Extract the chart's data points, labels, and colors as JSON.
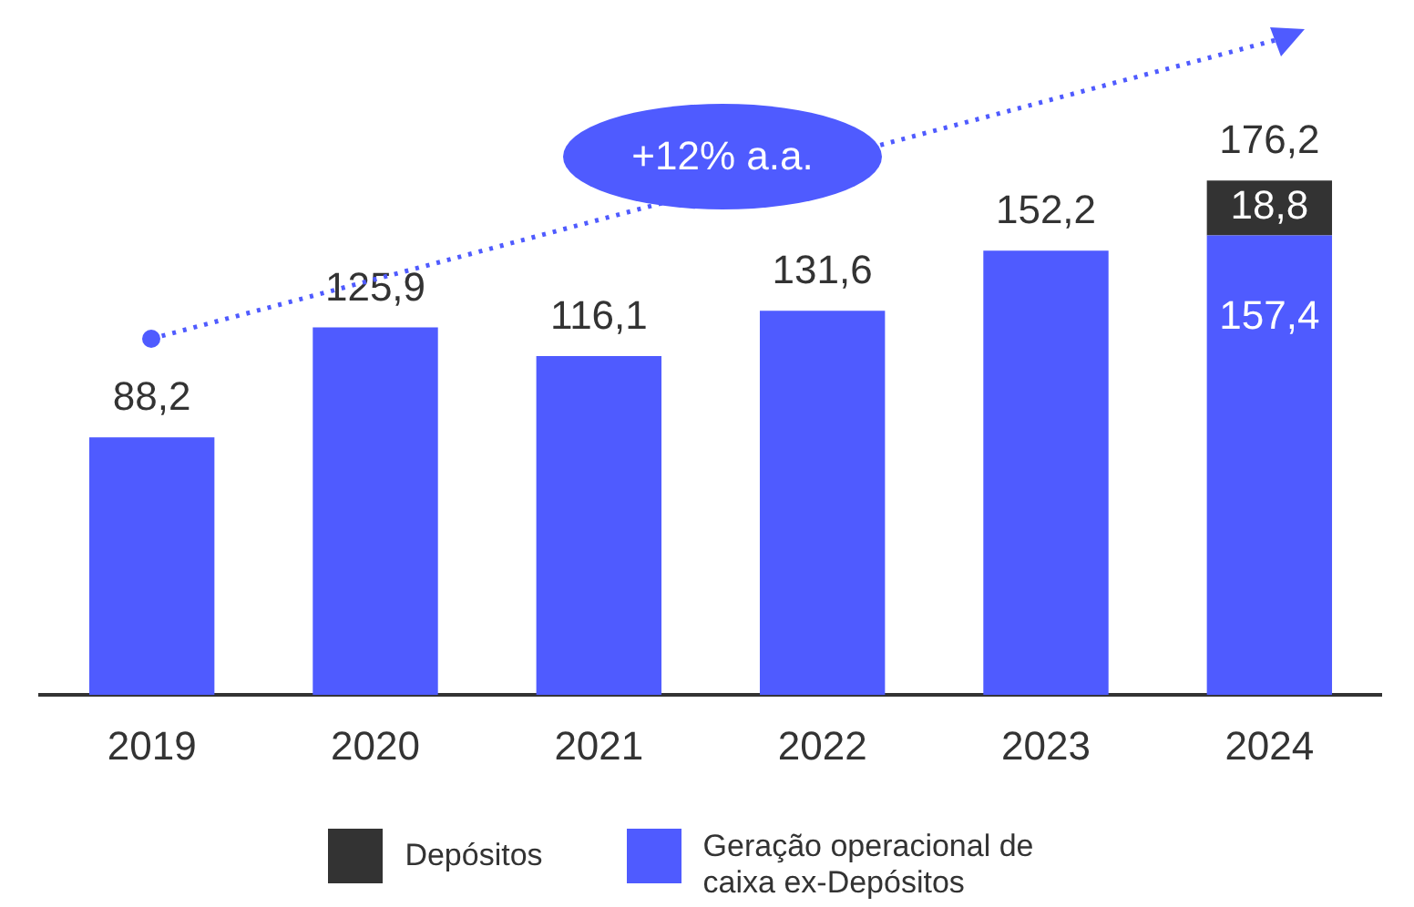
{
  "chart_data": {
    "type": "bar",
    "stacked": true,
    "categories": [
      "2019",
      "2020",
      "2021",
      "2022",
      "2023",
      "2024"
    ],
    "series": [
      {
        "name": "Geração operacional de caixa ex-Depósitos",
        "color": "#4f5bff",
        "values": [
          88.2,
          125.9,
          116.1,
          131.6,
          152.2,
          157.4
        ],
        "value_labels": [
          null,
          null,
          null,
          null,
          null,
          "157,4"
        ]
      },
      {
        "name": "Depósitos",
        "color": "#333333",
        "values": [
          null,
          null,
          null,
          null,
          null,
          18.8
        ],
        "value_labels": [
          null,
          null,
          null,
          null,
          null,
          "18,8"
        ]
      }
    ],
    "totals": [
      "88,2",
      "125,9",
      "116,1",
      "131,6",
      "152,2",
      "176,2"
    ],
    "grid": false,
    "legend": "bottom",
    "annotations": [
      "+12% a.a."
    ]
  }
}
